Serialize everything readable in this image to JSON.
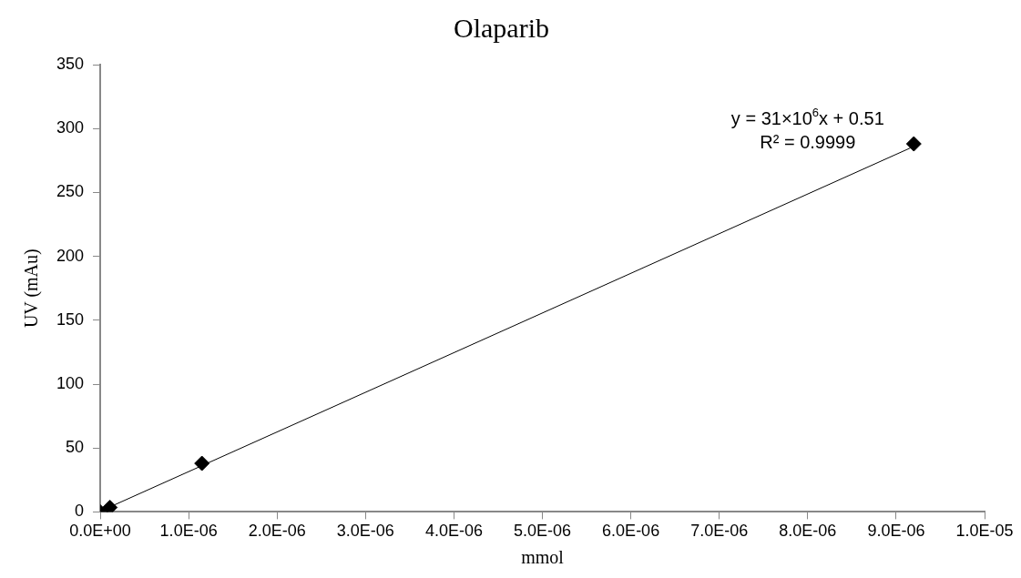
{
  "chart_data": {
    "type": "scatter",
    "title": "Olaparib",
    "xlabel": "mmol",
    "ylabel": "UV (mAu)",
    "xlim": [
      0,
      1e-05
    ],
    "xticks": [
      {
        "value": 0,
        "label": "0.0E+00"
      },
      {
        "value": 1e-06,
        "label": "1.0E-06"
      },
      {
        "value": 2e-06,
        "label": "2.0E-06"
      },
      {
        "value": 3e-06,
        "label": "3.0E-06"
      },
      {
        "value": 4e-06,
        "label": "4.0E-06"
      },
      {
        "value": 5e-06,
        "label": "5.0E-06"
      },
      {
        "value": 6e-06,
        "label": "6.0E-06"
      },
      {
        "value": 7e-06,
        "label": "7.0E-06"
      },
      {
        "value": 8e-06,
        "label": "8.0E-06"
      },
      {
        "value": 9e-06,
        "label": "9.0E-06"
      },
      {
        "value": 1e-05,
        "label": "1.0E-05"
      }
    ],
    "ylim": [
      0,
      350
    ],
    "yticks": [
      0,
      50,
      100,
      150,
      200,
      250,
      300,
      350
    ],
    "grid": false,
    "legend": false,
    "marker": "diamond",
    "series": [
      {
        "type": "scatter",
        "color": "#000000",
        "x": [
          0,
          1.1e-07,
          1.15e-06,
          9.2e-06
        ],
        "values": [
          0,
          3.5,
          38,
          288
        ]
      },
      {
        "type": "line",
        "color": "#000000",
        "marker": "none",
        "line_style": "solid",
        "x": [
          0,
          9.2e-06
        ],
        "values": [
          0.5,
          286
        ]
      }
    ],
    "annotations": [
      "y = 31×10$^{6}$x + 0.51",
      "R² = 0.9999"
    ]
  }
}
